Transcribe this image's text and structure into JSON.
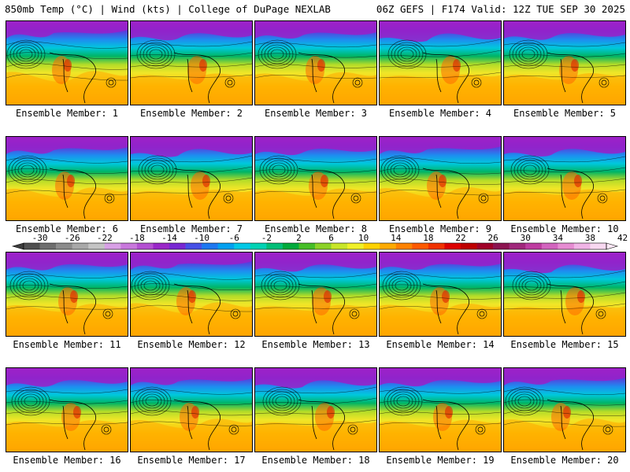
{
  "header": {
    "left": "850mb Temp (°C) | Wind (kts) | College of DuPage NEXLAB",
    "right": "06Z GEFS | F174 Valid: 12Z TUE SEP 30 2025"
  },
  "panels": [
    {
      "label": "Ensemble Member: 1"
    },
    {
      "label": "Ensemble Member: 2"
    },
    {
      "label": "Ensemble Member: 3"
    },
    {
      "label": "Ensemble Member: 4"
    },
    {
      "label": "Ensemble Member: 5"
    },
    {
      "label": "Ensemble Member: 6"
    },
    {
      "label": "Ensemble Member: 7"
    },
    {
      "label": "Ensemble Member: 8"
    },
    {
      "label": "Ensemble Member: 9"
    },
    {
      "label": "Ensemble Member: 10"
    },
    {
      "label": "Ensemble Member: 11"
    },
    {
      "label": "Ensemble Member: 12"
    },
    {
      "label": "Ensemble Member: 13"
    },
    {
      "label": "Ensemble Member: 14"
    },
    {
      "label": "Ensemble Member: 15"
    },
    {
      "label": "Ensemble Member: 16"
    },
    {
      "label": "Ensemble Member: 17"
    },
    {
      "label": "Ensemble Member: 18"
    },
    {
      "label": "Ensemble Member: 19"
    },
    {
      "label": "Ensemble Member: 20"
    }
  ],
  "colorbar": {
    "ticks": [
      "-30",
      "-26",
      "-22",
      "-18",
      "-14",
      "-10",
      "-6",
      "-2",
      "2",
      "6",
      "10",
      "14",
      "18",
      "22",
      "26",
      "30",
      "34",
      "38",
      "42"
    ],
    "colors": [
      "#505050",
      "#6e6e6e",
      "#8c8c8c",
      "#a8a8a8",
      "#c4c4c4",
      "#d8a0e6",
      "#c878dc",
      "#b450d2",
      "#9a28c8",
      "#7828d2",
      "#4650e6",
      "#1e78f0",
      "#00a0f0",
      "#00c8e6",
      "#00d2b4",
      "#00be78",
      "#00aa3c",
      "#46be28",
      "#8cd228",
      "#c8e628",
      "#f0f028",
      "#ffd200",
      "#ffaa00",
      "#ff8200",
      "#ff5a00",
      "#f03200",
      "#dc0000",
      "#be0000",
      "#a00028",
      "#8c1450",
      "#a0287c",
      "#be3ca0",
      "#d264be",
      "#e68cd2",
      "#f0b4e6",
      "#f8d8f0"
    ]
  }
}
